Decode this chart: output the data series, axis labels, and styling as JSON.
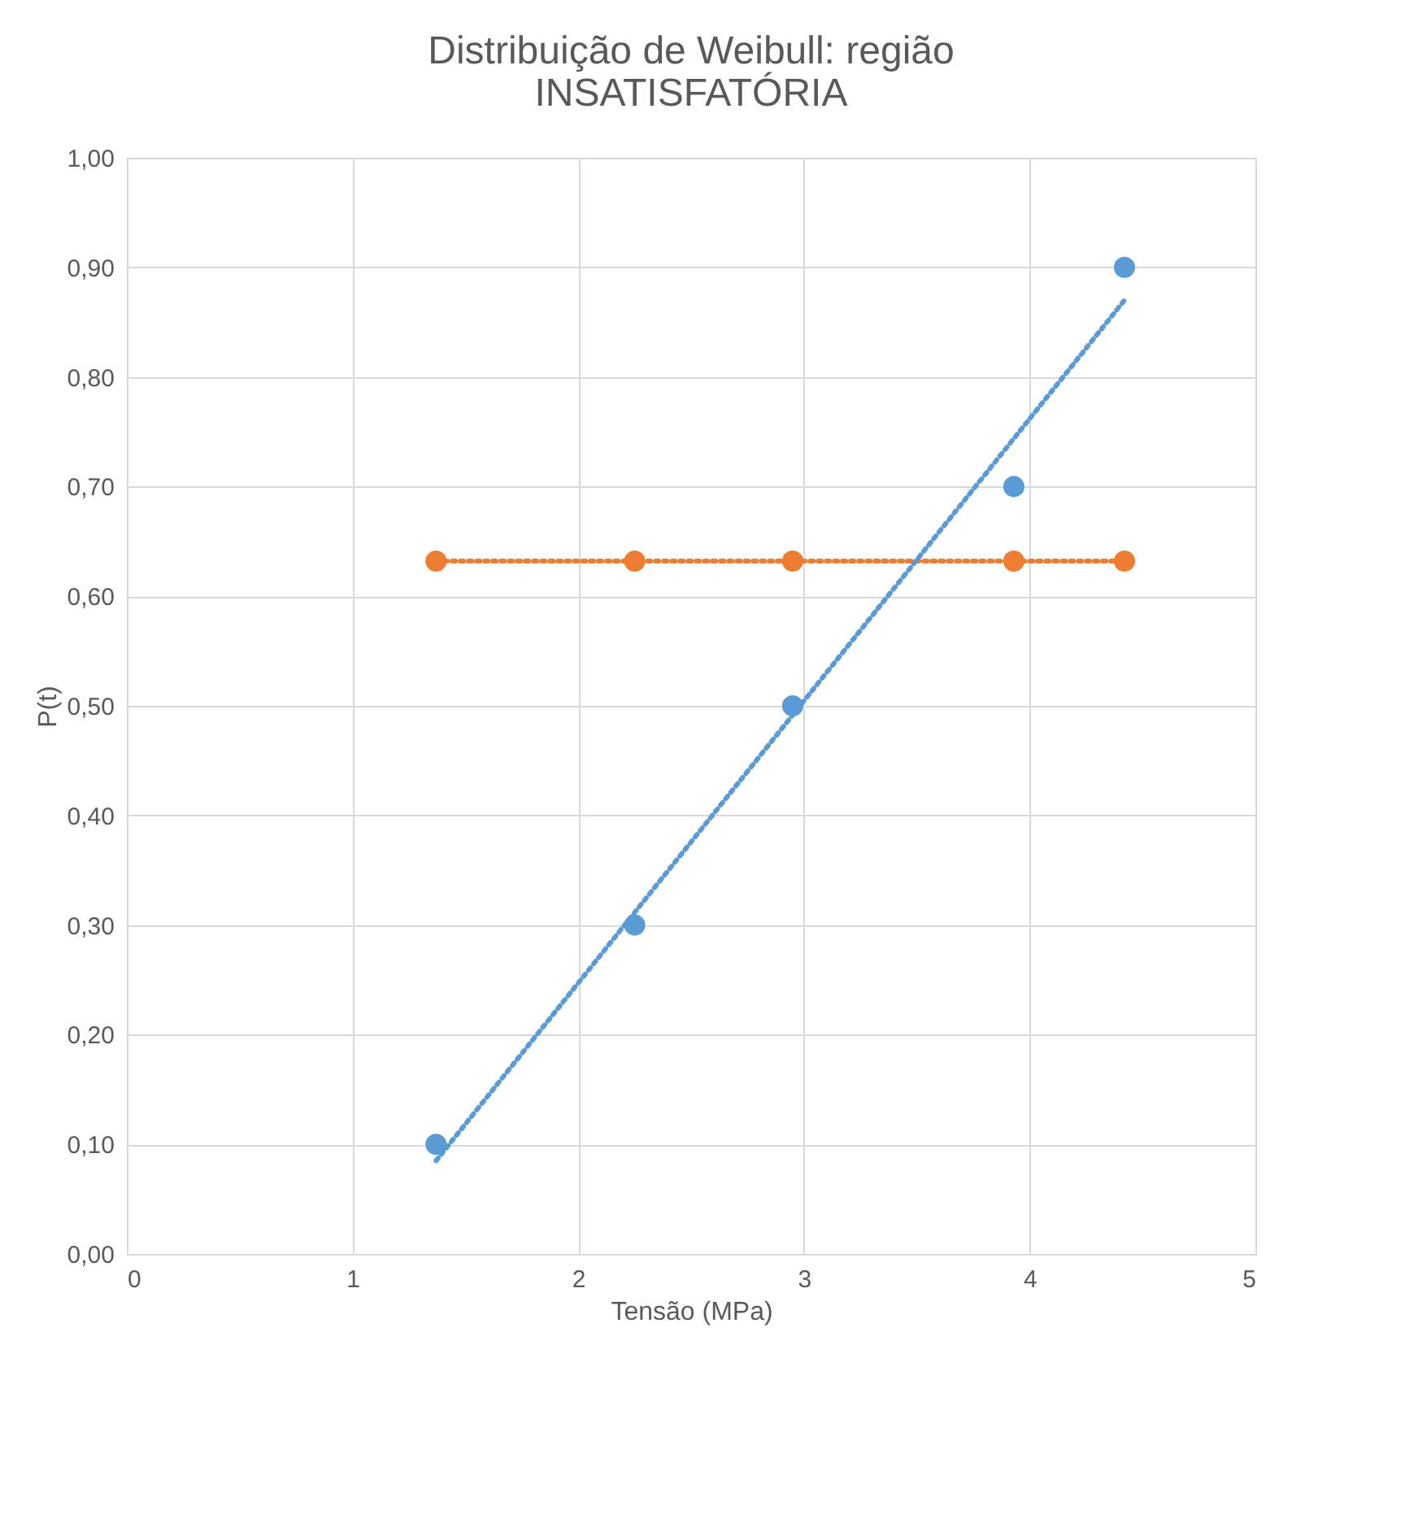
{
  "chart_data": {
    "type": "scatter",
    "title": [
      "Distribuição de Weibull: região",
      "INSATISFATÓRIA"
    ],
    "xlabel": "Tensão (MPa)",
    "ylabel": "P(t)",
    "xlim": [
      0,
      5
    ],
    "xticks": [
      0,
      1,
      2,
      3,
      4,
      5
    ],
    "ylim": [
      0,
      1
    ],
    "yticks": [
      {
        "value": 0,
        "label": "0,00"
      },
      {
        "value": 0.1,
        "label": "0,10"
      },
      {
        "value": 0.2,
        "label": "0,20"
      },
      {
        "value": 0.3,
        "label": "0,30"
      },
      {
        "value": 0.4,
        "label": "0,40"
      },
      {
        "value": 0.5,
        "label": "0,50"
      },
      {
        "value": 0.6,
        "label": "0,60"
      },
      {
        "value": 0.7,
        "label": "0,70"
      },
      {
        "value": 0.8,
        "label": "0,80"
      },
      {
        "value": 0.9,
        "label": "0,90"
      },
      {
        "value": 1,
        "label": "1,00"
      }
    ],
    "grid": true,
    "series": [
      {
        "color": "#5b9bd5",
        "marker": "circle",
        "x": [
          1.37,
          2.25,
          2.95,
          3.93,
          4.42
        ],
        "values": [
          0.1,
          0.3,
          0.5,
          0.7,
          0.9
        ]
      },
      {
        "type": "line",
        "color": "#ed7d31",
        "marker": "circle",
        "line_style": "dotted",
        "x": [
          1.37,
          2.25,
          2.95,
          3.93,
          4.42
        ],
        "values": [
          0.632,
          0.632,
          0.632,
          0.632,
          0.632
        ]
      },
      {
        "type": "line",
        "color": "#5b9bd5",
        "marker": "none",
        "line_style": "dotted",
        "x": [
          1.37,
          4.42
        ],
        "values": [
          0.085,
          0.87
        ]
      }
    ]
  }
}
